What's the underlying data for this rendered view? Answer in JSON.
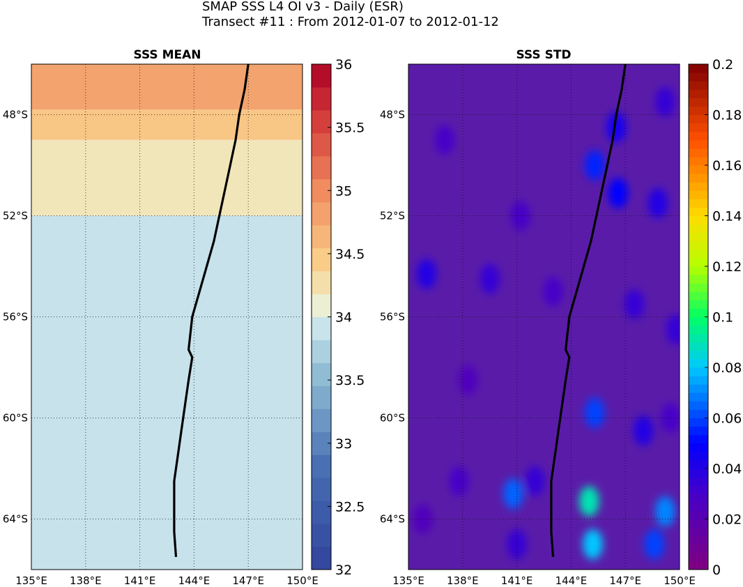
{
  "figure": {
    "title_line1": "SMAP SSS L4 OI v3 - Daily (ESR)",
    "title_line2": "Transect #11 : From 2012-01-07 to 2012-01-12"
  },
  "chart_data": [
    {
      "type": "heatmap",
      "title": "SSS MEAN",
      "xlim": [
        135,
        150
      ],
      "ylim": [
        -66,
        -46
      ],
      "xticks": [
        135,
        138,
        141,
        144,
        147,
        150
      ],
      "xtick_labels": [
        "135°E",
        "138°E",
        "141°E",
        "144°E",
        "147°E",
        "150°E"
      ],
      "yticks": [
        -48,
        -52,
        -56,
        -60,
        -64
      ],
      "ytick_labels": [
        "48°S",
        "52°S",
        "56°S",
        "60°S",
        "64°S"
      ],
      "grid": true,
      "colorbar": {
        "min": 32,
        "max": 36,
        "levels": 22,
        "ticks": [
          32,
          32.5,
          33,
          33.5,
          34,
          34.5,
          35,
          35.5,
          36
        ],
        "tick_labels": [
          "32",
          "32.5",
          "33",
          "33.5",
          "34",
          "34.5",
          "35",
          "35.5",
          "36"
        ],
        "colormap": "diverging blue-white-red"
      },
      "latitude_bands": [
        {
          "lat_from": -46.0,
          "lat_to": -47.8,
          "sss": 34.8
        },
        {
          "lat_from": -47.8,
          "lat_to": -49.0,
          "sss": 34.5
        },
        {
          "lat_from": -49.0,
          "lat_to": -52.0,
          "sss": 34.2
        },
        {
          "lat_from": -52.0,
          "lat_to": -66.0,
          "sss": 33.9
        }
      ],
      "transect_track": {
        "lon": [
          147.0,
          146.8,
          146.5,
          146.3,
          146.0,
          145.7,
          145.4,
          145.1,
          144.7,
          144.3,
          143.9,
          143.7,
          143.9,
          143.7,
          143.5,
          143.3,
          143.1,
          142.9,
          142.9,
          142.9,
          143.0
        ],
        "lat": [
          -46.0,
          -47.0,
          -48.0,
          -49.0,
          -50.0,
          -51.0,
          -52.0,
          -53.0,
          -54.0,
          -55.0,
          -56.0,
          -57.3,
          -57.6,
          -58.5,
          -59.5,
          -60.5,
          -61.5,
          -62.5,
          -63.5,
          -64.5,
          -65.5
        ]
      }
    },
    {
      "type": "heatmap",
      "title": "SSS STD",
      "xlim": [
        135,
        150
      ],
      "ylim": [
        -66,
        -46
      ],
      "xticks": [
        135,
        138,
        141,
        144,
        147,
        150
      ],
      "xtick_labels": [
        "135°E",
        "138°E",
        "141°E",
        "144°E",
        "147°E",
        "150°E"
      ],
      "yticks": [
        -48,
        -52,
        -56,
        -60,
        -64
      ],
      "ytick_labels": [
        "48°S",
        "52°S",
        "56°S",
        "60°S",
        "64°S"
      ],
      "grid": true,
      "colorbar": {
        "min": 0,
        "max": 0.2,
        "ticks": [
          0,
          0.02,
          0.04,
          0.06,
          0.08,
          0.1,
          0.12,
          0.14,
          0.16,
          0.18,
          0.2
        ],
        "tick_labels": [
          "0",
          "0.02",
          "0.04",
          "0.06",
          "0.08",
          "0.1",
          "0.12",
          "0.14",
          "0.16",
          "0.18",
          "0.2"
        ],
        "colormap": "jet-like purple-blue-green-yellow-red"
      },
      "background_std": 0.015,
      "hotspots": [
        {
          "lon": 145.0,
          "lat": -63.3,
          "std": 0.09
        },
        {
          "lon": 145.2,
          "lat": -65.0,
          "std": 0.08
        },
        {
          "lon": 149.2,
          "lat": -63.7,
          "std": 0.07
        },
        {
          "lon": 140.8,
          "lat": -63.0,
          "std": 0.065
        },
        {
          "lon": 145.3,
          "lat": -59.8,
          "std": 0.06
        },
        {
          "lon": 148.6,
          "lat": -65.0,
          "std": 0.06
        },
        {
          "lon": 145.3,
          "lat": -50.0,
          "std": 0.055
        },
        {
          "lon": 146.6,
          "lat": -51.1,
          "std": 0.05
        },
        {
          "lon": 146.5,
          "lat": -48.5,
          "std": 0.045
        },
        {
          "lon": 136.0,
          "lat": -54.3,
          "std": 0.04
        },
        {
          "lon": 142.0,
          "lat": -62.5,
          "std": 0.035
        },
        {
          "lon": 148.0,
          "lat": -60.5,
          "std": 0.04
        },
        {
          "lon": 148.8,
          "lat": -51.5,
          "std": 0.04
        },
        {
          "lon": 137.8,
          "lat": -62.5,
          "std": 0.03
        },
        {
          "lon": 141.0,
          "lat": -65.0,
          "std": 0.035
        },
        {
          "lon": 149.5,
          "lat": -60.0,
          "std": 0.03
        },
        {
          "lon": 149.8,
          "lat": -56.5,
          "std": 0.035
        },
        {
          "lon": 139.5,
          "lat": -54.5,
          "std": 0.035
        },
        {
          "lon": 143.0,
          "lat": -55.0,
          "std": 0.03
        },
        {
          "lon": 147.5,
          "lat": -55.5,
          "std": 0.035
        },
        {
          "lon": 149.2,
          "lat": -47.5,
          "std": 0.035
        },
        {
          "lon": 137.0,
          "lat": -49.0,
          "std": 0.03
        },
        {
          "lon": 141.2,
          "lat": -52.0,
          "std": 0.03
        },
        {
          "lon": 135.8,
          "lat": -64.0,
          "std": 0.025
        },
        {
          "lon": 138.3,
          "lat": -58.5,
          "std": 0.025
        }
      ],
      "transect_track": {
        "lon": [
          147.0,
          146.8,
          146.5,
          146.3,
          146.0,
          145.7,
          145.4,
          145.1,
          144.7,
          144.3,
          143.9,
          143.7,
          143.9,
          143.7,
          143.5,
          143.3,
          143.1,
          142.9,
          142.9,
          142.9,
          143.0
        ],
        "lat": [
          -46.0,
          -47.0,
          -48.0,
          -49.0,
          -50.0,
          -51.0,
          -52.0,
          -53.0,
          -54.0,
          -55.0,
          -56.0,
          -57.3,
          -57.6,
          -58.5,
          -59.5,
          -60.5,
          -61.5,
          -62.5,
          -63.5,
          -64.5,
          -65.5
        ]
      }
    }
  ]
}
